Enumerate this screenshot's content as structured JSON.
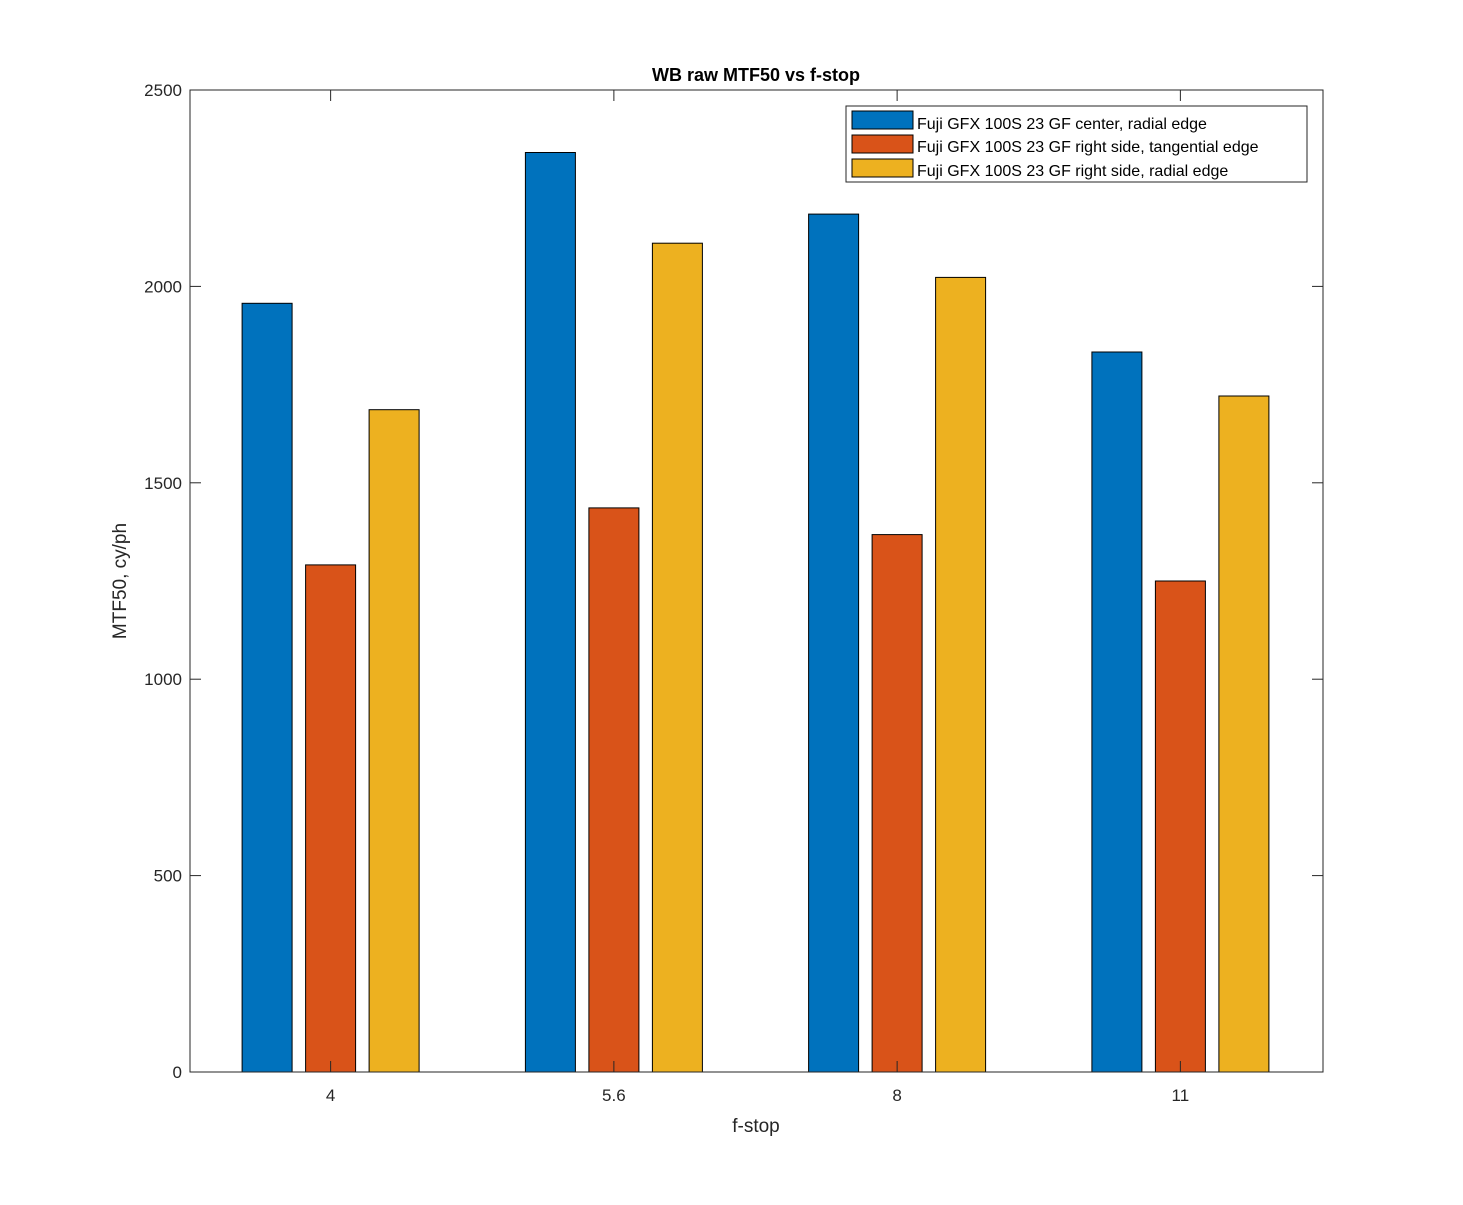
{
  "chart_data": {
    "type": "bar",
    "title": "WB raw MTF50 vs f-stop",
    "xlabel": "f-stop",
    "ylabel": "MTF50, cy/ph",
    "categories": [
      "4",
      "5.6",
      "8",
      "11"
    ],
    "ylim": [
      0,
      2500
    ],
    "yticks": [
      0,
      500,
      1000,
      1500,
      2000,
      2500
    ],
    "grid": false,
    "legend_position": "top-right",
    "series": [
      {
        "name": "Fuji GFX 100S 23 GF center, radial edge",
        "color": "#0072BD",
        "values": [
          1957,
          2341,
          2184,
          1833
        ]
      },
      {
        "name": "Fuji GFX 100S 23 GF right side, tangential edge",
        "color": "#D95319",
        "values": [
          1291,
          1436,
          1368,
          1250
        ]
      },
      {
        "name": "Fuji GFX 100S 23 GF right side, radial edge",
        "color": "#EDB120",
        "values": [
          1686,
          2110,
          2023,
          1721
        ]
      }
    ]
  }
}
